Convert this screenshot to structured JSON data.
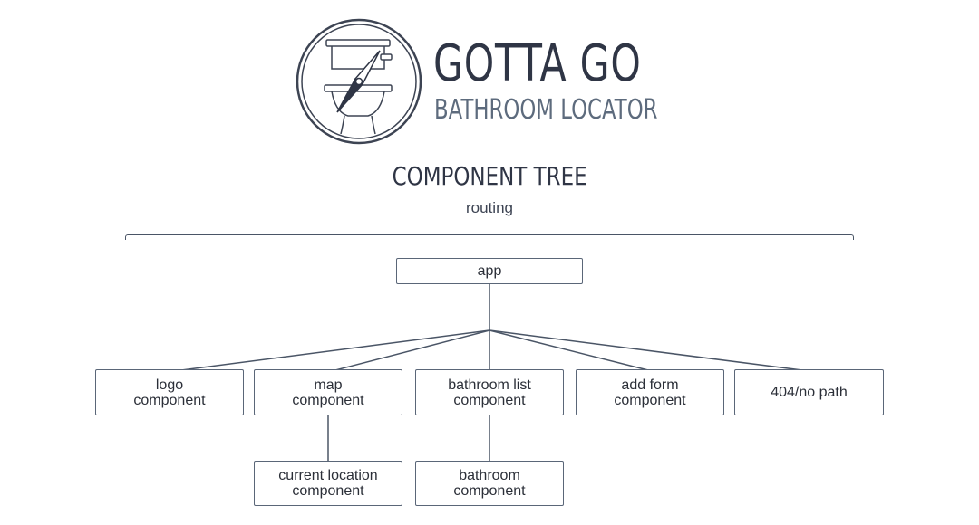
{
  "brand": {
    "name": "GOTTA GO",
    "tagline": "BATHROOM LOCATOR"
  },
  "header": {
    "title": "COMPONENT TREE",
    "subtitle": "routing"
  },
  "tree": {
    "root": {
      "label": "app"
    },
    "children": [
      {
        "id": "logo",
        "line1": "logo",
        "line2": "component"
      },
      {
        "id": "map",
        "line1": "map",
        "line2": "component"
      },
      {
        "id": "bathroom-list",
        "line1": "bathroom list",
        "line2": "component"
      },
      {
        "id": "add-form",
        "line1": "add form",
        "line2": "component"
      },
      {
        "id": "not-found",
        "line1": "404/no path",
        "line2": ""
      }
    ],
    "grandchildren": [
      {
        "parent": "map",
        "line1": "current location",
        "line2": "component"
      },
      {
        "parent": "bathroom-list",
        "line1": "bathroom",
        "line2": "component"
      }
    ]
  },
  "colors": {
    "ink": "#2f3545",
    "muted": "#5d6b7d",
    "line": "#4a5566"
  }
}
